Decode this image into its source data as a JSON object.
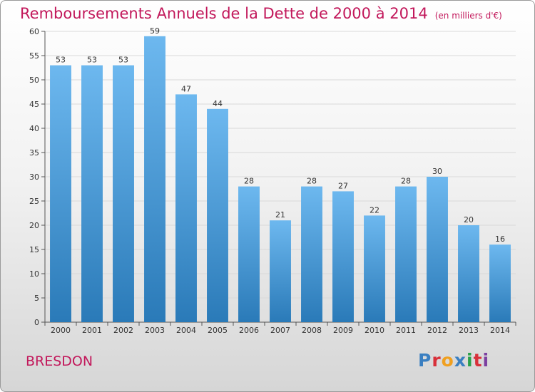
{
  "title": "Remboursements Annuels de la Dette de 2000 à 2014",
  "title_unit": "(en milliers d'€)",
  "commune": "BRESDON",
  "logo": {
    "text": "Proxiti",
    "colors": [
      "#3a7fc1",
      "#d8303a",
      "#f0a020",
      "#3a7fc1",
      "#2aa14a",
      "#d8303a",
      "#7b3fa0"
    ]
  },
  "colors": {
    "title": "#c2185b",
    "bar_top": "#6db8ef",
    "bar_bottom": "#2a7ab8",
    "grid": "#d9d9d9"
  },
  "chart_data": {
    "type": "bar",
    "title": "Remboursements Annuels de la Dette de 2000 à 2014",
    "subtitle": "(en milliers d'€)",
    "categories": [
      "2000",
      "2001",
      "2002",
      "2003",
      "2004",
      "2005",
      "2006",
      "2007",
      "2008",
      "2009",
      "2010",
      "2011",
      "2012",
      "2013",
      "2014"
    ],
    "values": [
      53,
      53,
      53,
      59,
      47,
      44,
      28,
      21,
      28,
      27,
      22,
      28,
      30,
      20,
      16
    ],
    "ylim": [
      0,
      60
    ],
    "yticks": [
      0,
      5,
      10,
      15,
      20,
      25,
      30,
      35,
      40,
      45,
      50,
      55,
      60
    ],
    "xlabel": "",
    "ylabel": "",
    "grid": true,
    "data_labels": true
  }
}
